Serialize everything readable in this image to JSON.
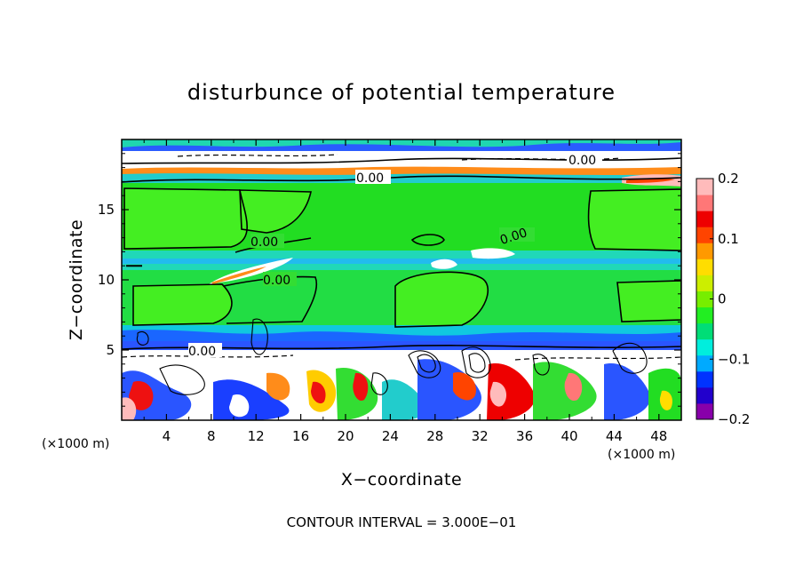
{
  "chart_data": {
    "type": "heatmap",
    "title": "disturbunce of potential temperature",
    "xlabel": "X−coordinate",
    "ylabel": "Z−coordinate",
    "x_unit": "(×1000 m)",
    "y_unit": "(×1000 m)",
    "xlim": [
      0,
      50
    ],
    "ylim": [
      0,
      20
    ],
    "x_ticks": [
      4,
      8,
      12,
      16,
      20,
      24,
      28,
      32,
      36,
      40,
      44,
      48
    ],
    "y_ticks": [
      5,
      10,
      15
    ],
    "x_ticks_labels": [
      "4",
      "8",
      "12",
      "16",
      "20",
      "24",
      "28",
      "32",
      "36",
      "40",
      "44",
      "48"
    ],
    "y_ticks_labels": [
      "5",
      "10",
      "15"
    ],
    "colorbar": {
      "range": [
        -0.2,
        0.2
      ],
      "tick_values": [
        0.2,
        0.1,
        0,
        -0.1,
        -0.2
      ],
      "tick_labels": [
        "0.2",
        "0.1",
        "0",
        "−0.1",
        "−0.2"
      ],
      "colors": [
        "#8800aa",
        "#2200cc",
        "#0033ff",
        "#00aaff",
        "#00eedd",
        "#00dd77",
        "#22ee22",
        "#77ee00",
        "#ccee00",
        "#ffdd00",
        "#ff9900",
        "#ff4400",
        "#ee0000",
        "#ff7777",
        "#ffbbbb"
      ]
    },
    "contour_labels": [
      "0.00",
      "0.00",
      "0.00",
      "0.00",
      "0.00",
      "0.00"
    ],
    "footer": "CONTOUR INTERVAL = 3.000E−01"
  }
}
